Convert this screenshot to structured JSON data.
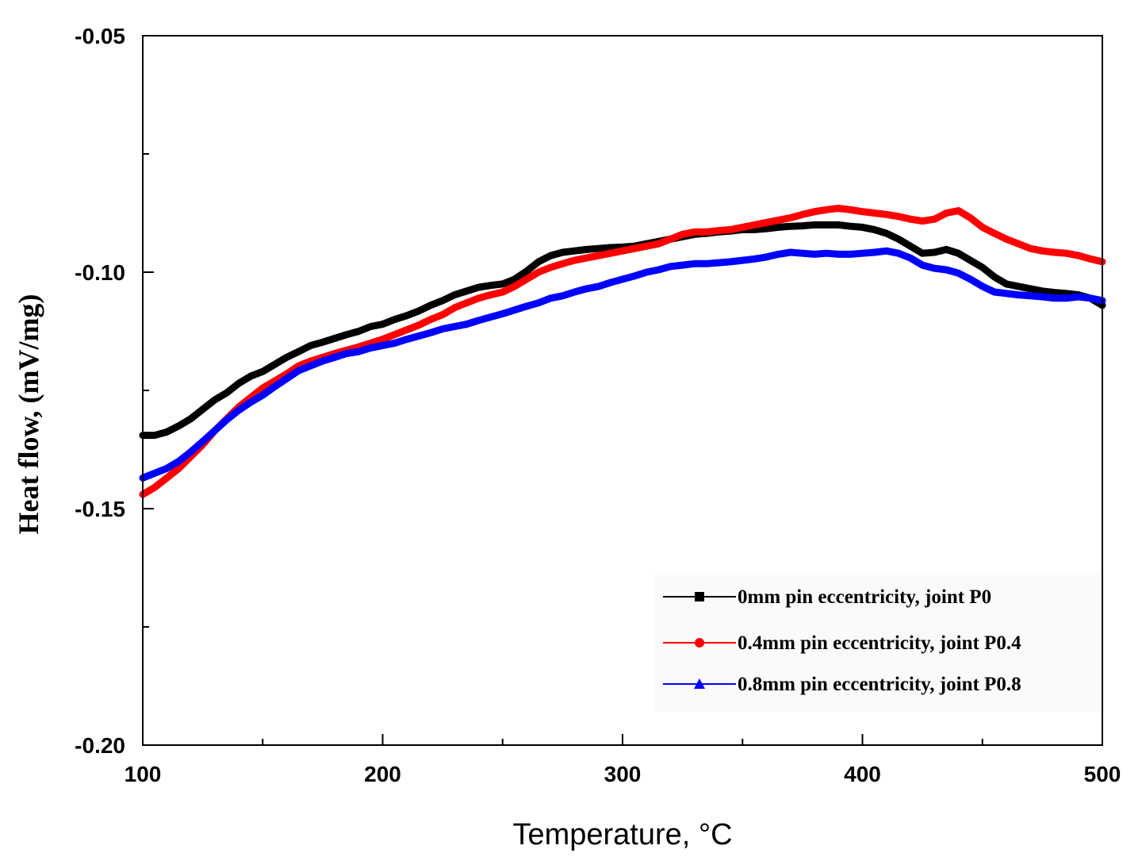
{
  "chart_data": {
    "type": "line",
    "title": "",
    "xlabel": "Temperature, °C",
    "ylabel": "Heat flow, (mV/mg)",
    "xlim": [
      100,
      500
    ],
    "ylim": [
      -0.2,
      -0.05
    ],
    "x_ticks": [
      100,
      200,
      300,
      400,
      500
    ],
    "x_tick_labels": [
      "100",
      "200",
      "300",
      "400",
      "500"
    ],
    "y_ticks": [
      -0.05,
      -0.1,
      -0.15,
      -0.2
    ],
    "y_tick_labels": [
      "-0.05",
      "-0.10",
      "-0.15",
      "-0.20"
    ],
    "x_minor_ticks": [
      150,
      250,
      350,
      450
    ],
    "y_minor_ticks": [
      -0.075,
      -0.125,
      -0.175
    ],
    "grid": false,
    "legend_position": "bottom-right",
    "series": [
      {
        "name": "0mm pin eccentricity, joint P0",
        "color": "#000000",
        "marker": "square",
        "x": [
          100,
          105,
          110,
          115,
          120,
          125,
          130,
          135,
          140,
          145,
          150,
          155,
          160,
          165,
          170,
          175,
          180,
          185,
          190,
          195,
          200,
          205,
          210,
          215,
          220,
          225,
          230,
          235,
          240,
          245,
          250,
          255,
          260,
          265,
          270,
          275,
          280,
          285,
          290,
          295,
          300,
          305,
          310,
          315,
          320,
          325,
          330,
          335,
          340,
          345,
          350,
          355,
          360,
          365,
          370,
          375,
          380,
          385,
          390,
          395,
          400,
          405,
          410,
          415,
          420,
          425,
          430,
          435,
          440,
          445,
          450,
          455,
          460,
          465,
          470,
          475,
          480,
          485,
          490,
          495,
          500
        ],
        "y": [
          -0.1345,
          -0.1345,
          -0.1338,
          -0.1325,
          -0.131,
          -0.129,
          -0.127,
          -0.1255,
          -0.1235,
          -0.122,
          -0.121,
          -0.1195,
          -0.118,
          -0.1168,
          -0.1155,
          -0.1148,
          -0.114,
          -0.1132,
          -0.1125,
          -0.1115,
          -0.111,
          -0.11,
          -0.1092,
          -0.1082,
          -0.107,
          -0.106,
          -0.1048,
          -0.104,
          -0.1032,
          -0.1028,
          -0.1025,
          -0.1015,
          -0.0998,
          -0.0978,
          -0.0965,
          -0.0958,
          -0.0955,
          -0.0952,
          -0.095,
          -0.0948,
          -0.0947,
          -0.0945,
          -0.094,
          -0.0935,
          -0.093,
          -0.0925,
          -0.092,
          -0.0918,
          -0.0915,
          -0.0913,
          -0.091,
          -0.091,
          -0.0908,
          -0.0905,
          -0.0903,
          -0.0902,
          -0.09,
          -0.09,
          -0.09,
          -0.0903,
          -0.0905,
          -0.091,
          -0.0918,
          -0.093,
          -0.0945,
          -0.096,
          -0.0958,
          -0.0952,
          -0.096,
          -0.0975,
          -0.099,
          -0.101,
          -0.1025,
          -0.103,
          -0.1035,
          -0.104,
          -0.1043,
          -0.1045,
          -0.1048,
          -0.1055,
          -0.107
        ]
      },
      {
        "name": "0.4mm pin eccentricity, joint P0.4",
        "color": "#ff0000",
        "marker": "circle",
        "x": [
          100,
          105,
          110,
          115,
          120,
          125,
          130,
          135,
          140,
          145,
          150,
          155,
          160,
          165,
          170,
          175,
          180,
          185,
          190,
          195,
          200,
          205,
          210,
          215,
          220,
          225,
          230,
          235,
          240,
          245,
          250,
          255,
          260,
          265,
          270,
          275,
          280,
          285,
          290,
          295,
          300,
          305,
          310,
          315,
          320,
          325,
          330,
          335,
          340,
          345,
          350,
          355,
          360,
          365,
          370,
          375,
          380,
          385,
          390,
          395,
          400,
          405,
          410,
          415,
          420,
          425,
          430,
          435,
          440,
          445,
          450,
          455,
          460,
          465,
          470,
          475,
          480,
          485,
          490,
          495,
          500
        ],
        "y": [
          -0.147,
          -0.1455,
          -0.1435,
          -0.1415,
          -0.139,
          -0.1365,
          -0.1335,
          -0.131,
          -0.1285,
          -0.1265,
          -0.1245,
          -0.123,
          -0.1215,
          -0.1198,
          -0.1188,
          -0.118,
          -0.1172,
          -0.1165,
          -0.1158,
          -0.115,
          -0.1142,
          -0.1132,
          -0.1122,
          -0.1112,
          -0.11,
          -0.109,
          -0.1075,
          -0.1065,
          -0.1055,
          -0.1048,
          -0.1042,
          -0.103,
          -0.1015,
          -0.1,
          -0.099,
          -0.0982,
          -0.0975,
          -0.097,
          -0.0965,
          -0.096,
          -0.0955,
          -0.095,
          -0.0945,
          -0.094,
          -0.093,
          -0.092,
          -0.0915,
          -0.0915,
          -0.0912,
          -0.091,
          -0.0905,
          -0.09,
          -0.0895,
          -0.089,
          -0.0885,
          -0.0878,
          -0.0872,
          -0.0868,
          -0.0865,
          -0.0868,
          -0.0872,
          -0.0875,
          -0.0878,
          -0.0882,
          -0.0888,
          -0.0892,
          -0.0888,
          -0.0875,
          -0.087,
          -0.0885,
          -0.0905,
          -0.0918,
          -0.093,
          -0.094,
          -0.095,
          -0.0955,
          -0.0958,
          -0.096,
          -0.0965,
          -0.0972,
          -0.0978
        ]
      },
      {
        "name": "0.8mm pin eccentricity, joint P0.8",
        "color": "#0000ff",
        "marker": "triangle",
        "x": [
          100,
          105,
          110,
          115,
          120,
          125,
          130,
          135,
          140,
          145,
          150,
          155,
          160,
          165,
          170,
          175,
          180,
          185,
          190,
          195,
          200,
          205,
          210,
          215,
          220,
          225,
          230,
          235,
          240,
          245,
          250,
          255,
          260,
          265,
          270,
          275,
          280,
          285,
          290,
          295,
          300,
          305,
          310,
          315,
          320,
          325,
          330,
          335,
          340,
          345,
          350,
          355,
          360,
          365,
          370,
          375,
          380,
          385,
          390,
          395,
          400,
          405,
          410,
          415,
          420,
          425,
          430,
          435,
          440,
          445,
          450,
          455,
          460,
          465,
          470,
          475,
          480,
          485,
          490,
          495,
          500
        ],
        "y": [
          -0.1435,
          -0.1425,
          -0.1415,
          -0.14,
          -0.138,
          -0.1358,
          -0.1335,
          -0.1312,
          -0.1292,
          -0.1275,
          -0.126,
          -0.1242,
          -0.1225,
          -0.1208,
          -0.1198,
          -0.1188,
          -0.118,
          -0.1172,
          -0.1168,
          -0.116,
          -0.1155,
          -0.115,
          -0.1142,
          -0.1135,
          -0.1128,
          -0.112,
          -0.1115,
          -0.111,
          -0.1102,
          -0.1095,
          -0.1088,
          -0.108,
          -0.1072,
          -0.1065,
          -0.1055,
          -0.105,
          -0.1042,
          -0.1035,
          -0.103,
          -0.1022,
          -0.1015,
          -0.1008,
          -0.1,
          -0.0995,
          -0.0988,
          -0.0985,
          -0.0982,
          -0.0982,
          -0.098,
          -0.0978,
          -0.0975,
          -0.0972,
          -0.0968,
          -0.0962,
          -0.0958,
          -0.096,
          -0.0962,
          -0.096,
          -0.0962,
          -0.0962,
          -0.096,
          -0.0958,
          -0.0955,
          -0.096,
          -0.097,
          -0.0985,
          -0.0992,
          -0.0995,
          -0.1002,
          -0.1015,
          -0.103,
          -0.1042,
          -0.1045,
          -0.1048,
          -0.105,
          -0.1052,
          -0.1055,
          -0.1055,
          -0.1052,
          -0.1055,
          -0.106
        ]
      }
    ]
  }
}
